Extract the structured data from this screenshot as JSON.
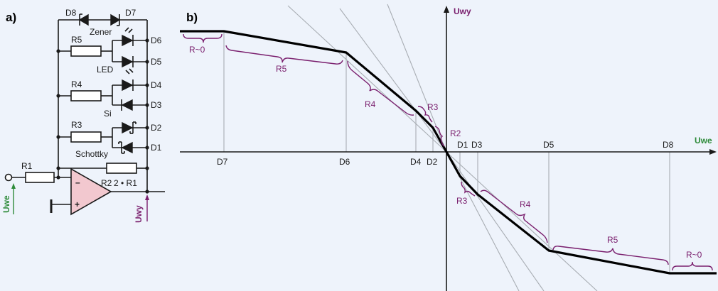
{
  "panel_a": {
    "label": "a)"
  },
  "panel_b": {
    "label": "b)"
  },
  "circuit": {
    "resistors": {
      "r1": "R1",
      "r2": "R2",
      "r2_value": "2 • R1",
      "r3": "R3",
      "r4": "R4",
      "r5": "R5"
    },
    "diodes": {
      "d1": "D1",
      "d2": "D2",
      "d3": "D3",
      "d4": "D4",
      "d5": "D5",
      "d6": "D6",
      "d7": "D7",
      "d8": "D8"
    },
    "diode_types": {
      "zener": "Zener",
      "led": "LED",
      "si": "Si",
      "schottky": "Schottky"
    },
    "signals": {
      "input": "Uwe",
      "output": "Uwy"
    },
    "opamp": {
      "minus": "–",
      "plus": "+"
    }
  },
  "chart_data": {
    "type": "line",
    "title": "",
    "xlabel": "Uwe",
    "ylabel": "Uwy",
    "x_marks": [
      "D7",
      "D6",
      "D4",
      "D2",
      "D1",
      "D3",
      "D5",
      "D8"
    ],
    "segments": [
      "R~0",
      "R5",
      "R4",
      "R3",
      "R2",
      "R3",
      "R4",
      "R5",
      "R~0"
    ],
    "grid": false
  }
}
